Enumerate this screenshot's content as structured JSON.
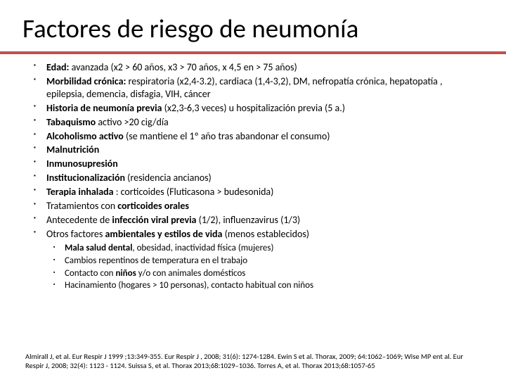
{
  "title": "Factores de riesgo de neumonía",
  "bullets": [
    {
      "lead": "Edad:",
      "rest": " avanzada (x2 > 60 años, x3 > 70 años, x 4,5 en > 75 años)"
    },
    {
      "lead": "Morbilidad crónica:",
      "rest": " respiratoria (x2,4-3.2), cardiaca (1,4-3,2), DM, nefropatía crónica, hepatopatía , epilepsia, demencia, disfagia, VIH, cáncer"
    },
    {
      "lead": "Historia de neumonía previa",
      "rest": " (x2,3-6,3 veces) u hospitalización previa (5 a.)"
    },
    {
      "lead": "Tabaquismo",
      "rest": " activo >20 cig/día"
    },
    {
      "lead": "Alcoholismo activo",
      "rest": " (se mantiene el 1º año tras abandonar el consumo)"
    },
    {
      "lead": "Malnutrición",
      "rest": ""
    },
    {
      "lead": "Inmunosupresión",
      "rest": ""
    },
    {
      "lead": "Institucionalización",
      "rest": " (residencia ancianos)"
    },
    {
      "lead": "Terapia inhalada",
      "rest": " : corticoides (Fluticasona > budesonida)"
    },
    {
      "lead": "",
      "rest": "Tratamientos con ",
      "mid_bold": "corticoides orales",
      "tail": ""
    },
    {
      "lead": "",
      "rest": "Antecedente de ",
      "mid_bold": "infección viral previa",
      "tail": " (1/2), influenzavirus (1/3)"
    },
    {
      "lead": "",
      "rest": "Otros factores ",
      "mid_bold": "ambientales y estilos de vida",
      "tail": " (menos establecidos)"
    }
  ],
  "sub_bullets": [
    {
      "lead": "Mala salud dental",
      "rest": ", obesidad, inactividad física (mujeres)"
    },
    {
      "lead": "",
      "rest": "Cambios repentinos de temperatura en el trabajo"
    },
    {
      "lead": "",
      "rest": "Contacto con ",
      "mid_bold": "niños",
      "tail": " y/o con animales domésticos"
    },
    {
      "lead": "",
      "rest": "Hacinamiento (hogares > 10 personas), contacto habitual con niños"
    }
  ],
  "refs": "Almirall J, et al. Eur Respir J 1999 ;13:349-355. Eur Respir J , 2008; 31(6): 1274-1284. Ewin S et al. Thorax, 2009; 64:1062–1069; Wise MP ent al. Eur Respir J, 2008; 32(4): 1123 - 1124. Suissa S, et al. Thorax 2013;68:1029–1036. Torres A, et al. Thorax 2013;68:1057-65",
  "colors": {
    "accent": "#c0504d",
    "background": "#ffffff",
    "text": "#000000"
  }
}
